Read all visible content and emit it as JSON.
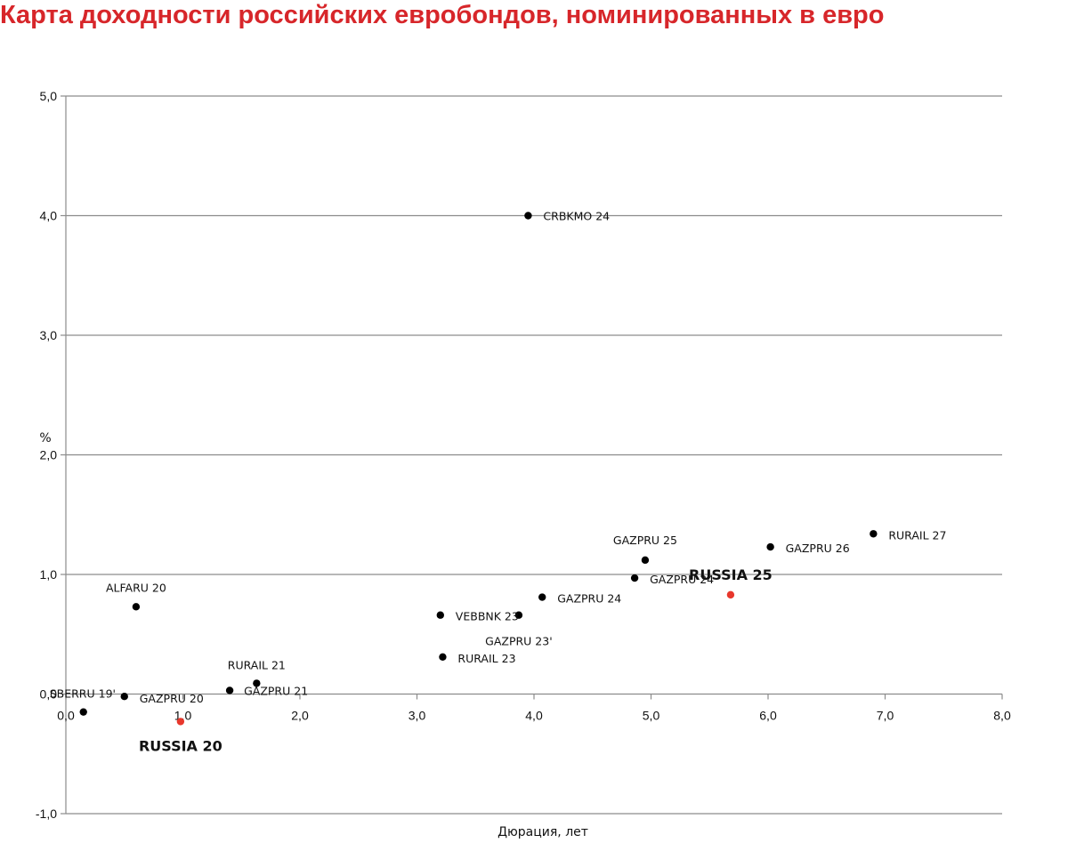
{
  "page": {
    "title": "Карта доходности российских евробондов, номинированных в евро"
  },
  "colors": {
    "title": "#d7262a",
    "highlight": "#e8372c",
    "point": "#000000",
    "grid": "#8c8c8c"
  },
  "chart_data": {
    "type": "scatter",
    "title": "Карта доходности российских евробондов, номинированных в евро",
    "xlabel": "Дюрация, лет",
    "ylabel": "%",
    "xlim": [
      0,
      8
    ],
    "ylim": [
      -1,
      5
    ],
    "grid": true,
    "x_ticks": [
      "0,0",
      "1,0",
      "2,0",
      "3,0",
      "4,0",
      "5,0",
      "6,0",
      "7,0",
      "8,0"
    ],
    "y_ticks": [
      "-1,0",
      "0,0",
      "1,0",
      "2,0",
      "3,0",
      "4,0",
      "5,0"
    ],
    "points": [
      {
        "name": "CRBKMO 24",
        "x": 3.95,
        "y": 4.0,
        "highlight": false
      },
      {
        "name": "RURAIL 27",
        "x": 6.9,
        "y": 1.34,
        "highlight": false
      },
      {
        "name": "GAZPRU 26",
        "x": 6.02,
        "y": 1.23,
        "highlight": false
      },
      {
        "name": "GAZPRU 25",
        "x": 4.95,
        "y": 1.12,
        "highlight": false
      },
      {
        "name": "GAZPRU 24",
        "x": 4.86,
        "y": 0.97,
        "highlight": false
      },
      {
        "name": "RUSSIA 25",
        "x": 5.68,
        "y": 0.83,
        "highlight": true
      },
      {
        "name": "GAZPRU 24",
        "x": 4.07,
        "y": 0.81,
        "highlight": false
      },
      {
        "name": "ALFARU 20",
        "x": 0.6,
        "y": 0.73,
        "highlight": false
      },
      {
        "name": "VEBBNK 23",
        "x": 3.2,
        "y": 0.66,
        "highlight": false
      },
      {
        "name": "GAZPRU 23'",
        "x": 3.87,
        "y": 0.66,
        "highlight": false
      },
      {
        "name": "RURAIL 23",
        "x": 3.22,
        "y": 0.31,
        "highlight": false
      },
      {
        "name": "RURAIL 21",
        "x": 1.63,
        "y": 0.09,
        "highlight": false
      },
      {
        "name": "GAZPRU 21",
        "x": 1.4,
        "y": 0.03,
        "highlight": false
      },
      {
        "name": "GAZPRU 20",
        "x": 0.5,
        "y": -0.02,
        "highlight": false
      },
      {
        "name": "SBERRU 19'",
        "x": 0.15,
        "y": -0.15,
        "highlight": false
      },
      {
        "name": "RUSSIA 20",
        "x": 0.98,
        "y": -0.23,
        "highlight": true
      }
    ]
  }
}
